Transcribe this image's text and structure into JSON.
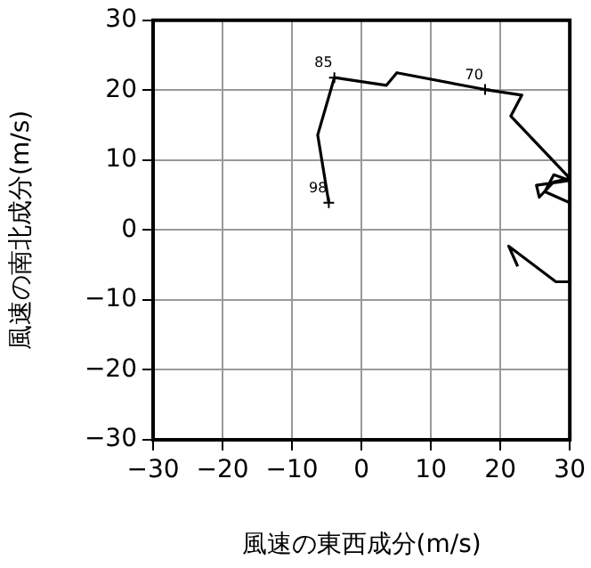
{
  "chart_data": {
    "type": "line",
    "xlabel": "風速の東西成分(m/s)",
    "ylabel": "風速の南北成分(m/s)",
    "x": [
      -4.7,
      -6.3,
      -3.9,
      3.6,
      5.1,
      17.8,
      23.1,
      21.5,
      30,
      27.7,
      25.6,
      25.2,
      30,
      27.7,
      26.4,
      30,
      30,
      28,
      21.2,
      22.5
    ],
    "series": [
      {
        "color": "#000000",
        "values": [
          3.9,
          13.6,
          21.8,
          20.7,
          22.5,
          20.1,
          19.3,
          16.3,
          7.4,
          6.9,
          4.7,
          6.4,
          7.1,
          7.9,
          5.5,
          3.9,
          -7.4,
          -7.4,
          -2.3,
          -5.2
        ]
      }
    ],
    "xlim": [
      -30,
      30
    ],
    "ylim": [
      -30,
      30
    ],
    "xticks": [
      -30,
      -20,
      -10,
      0,
      10,
      20,
      30
    ],
    "yticks": [
      -30,
      -20,
      -10,
      0,
      10,
      20,
      30
    ],
    "grid": true,
    "marker": "none",
    "line_style": "solid",
    "annotations": [
      {
        "text": "85",
        "x": -3.9,
        "y": 21.8
      },
      {
        "text": "70",
        "x": 17.8,
        "y": 20.1
      },
      {
        "text": "98",
        "x": -4.7,
        "y": 3.9
      }
    ]
  }
}
